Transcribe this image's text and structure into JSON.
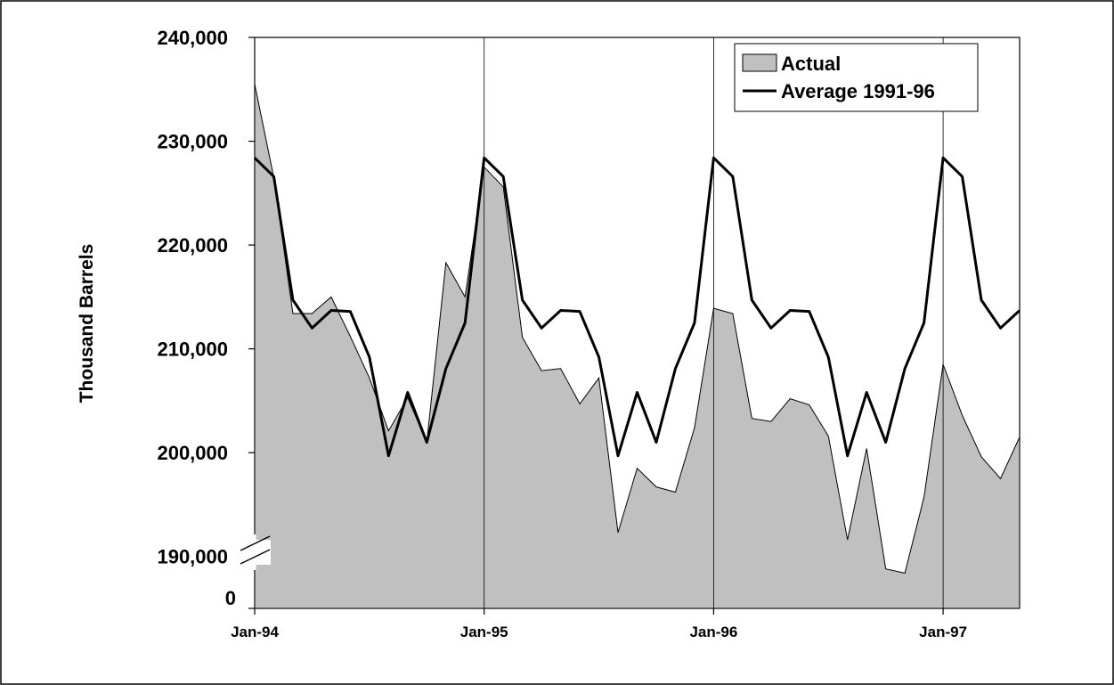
{
  "chart_data": {
    "type": "area",
    "title": "",
    "xlabel": "",
    "ylabel": "Thousand Barrels",
    "ylim": [
      185000,
      240000
    ],
    "y_axis_break": true,
    "y_break_label": "0",
    "y_ticks": [
      190000,
      200000,
      210000,
      220000,
      230000,
      240000
    ],
    "y_tick_labels": [
      "190,000",
      "200,000",
      "210,000",
      "220,000",
      "230,000",
      "240,000"
    ],
    "x_tick_labels": [
      "Jan-94",
      "Jan-95",
      "Jan-96",
      "Jan-97"
    ],
    "grid": "vertical lines at each January",
    "legend_position": "top-right",
    "colors": {
      "actual_fill": "#c0c0c0",
      "line": "#000000"
    },
    "x": [
      "Jan-94",
      "Feb-94",
      "Mar-94",
      "Apr-94",
      "May-94",
      "Jun-94",
      "Jul-94",
      "Aug-94",
      "Sep-94",
      "Oct-94",
      "Nov-94",
      "Dec-94",
      "Jan-95",
      "Feb-95",
      "Mar-95",
      "Apr-95",
      "May-95",
      "Jun-95",
      "Jul-95",
      "Aug-95",
      "Sep-95",
      "Oct-95",
      "Nov-95",
      "Dec-95",
      "Jan-96",
      "Feb-96",
      "Mar-96",
      "Apr-96",
      "May-96",
      "Jun-96",
      "Jul-96",
      "Aug-96",
      "Sep-96",
      "Oct-96",
      "Nov-96",
      "Dec-96",
      "Jan-97",
      "Feb-97",
      "Mar-97",
      "Apr-97",
      "May-97"
    ],
    "series": [
      {
        "name": "Actual",
        "kind": "area",
        "values": [
          235500,
          226500,
          213400,
          213400,
          215000,
          211200,
          207200,
          202100,
          205300,
          201000,
          218300,
          215000,
          227500,
          225600,
          211100,
          207900,
          208100,
          204700,
          207200,
          192300,
          198500,
          196700,
          196200,
          202400,
          213900,
          213400,
          203300,
          203000,
          205200,
          204600,
          201600,
          191600,
          200400,
          188800,
          188400,
          195700,
          208500,
          203600,
          199600,
          197500,
          201500
        ]
      },
      {
        "name": "Average 1991-96",
        "kind": "line",
        "values": [
          228400,
          226600,
          214700,
          212000,
          213700,
          213600,
          209200,
          199700,
          205800,
          201000,
          208100,
          212500,
          228400,
          226600,
          214700,
          212000,
          213700,
          213600,
          209200,
          199700,
          205800,
          201000,
          208100,
          212500,
          228400,
          226600,
          214700,
          212000,
          213700,
          213600,
          209200,
          199700,
          205800,
          201000,
          208100,
          212500,
          228400,
          226600,
          214700,
          212000,
          213700
        ]
      }
    ]
  }
}
